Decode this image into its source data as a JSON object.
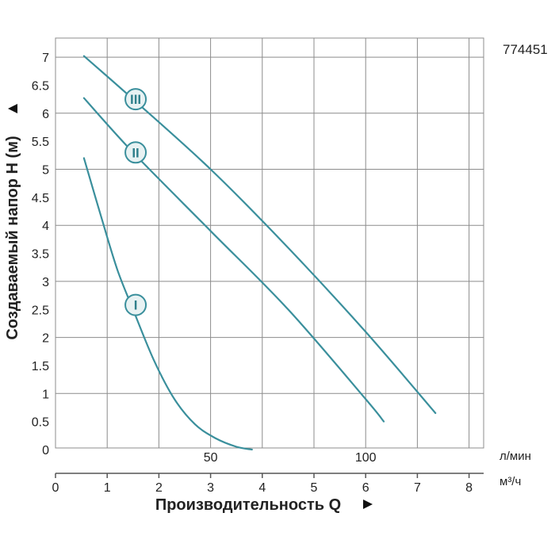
{
  "chart_data": {
    "type": "line",
    "code": "774451",
    "ylabel": "Создаваемый напор H (м)",
    "xlabel": "Производительность Q",
    "y_axis": {
      "min": 0,
      "max": 7.5,
      "ticks": [
        "0",
        "0.5",
        "1",
        "1.5",
        "2",
        "2.5",
        "3",
        "3.5",
        "4",
        "4.5",
        "5",
        "5.5",
        "6",
        "6.5",
        "7"
      ]
    },
    "x_axis_m3h": {
      "unit": "м³/ч",
      "min": 0,
      "max": 8.4,
      "ticks": [
        "0",
        "1",
        "2",
        "3",
        "4",
        "5",
        "6",
        "7",
        "8"
      ]
    },
    "x_axis_lmin": {
      "unit": "л/мин",
      "ticks": [
        "50",
        "100"
      ],
      "tick_values_m3h": [
        3,
        6
      ]
    },
    "grid": true,
    "series": [
      {
        "name": "I",
        "x": [
          0.55,
          0.9,
          1.2,
          1.5,
          1.9,
          2.3,
          2.7,
          3.1,
          3.5,
          3.8
        ],
        "y": [
          5.2,
          4.1,
          3.2,
          2.5,
          1.6,
          0.9,
          0.45,
          0.2,
          0.05,
          0.0
        ]
      },
      {
        "name": "II",
        "x": [
          0.55,
          1.5,
          3.0,
          4.5,
          6.0,
          6.35
        ],
        "y": [
          6.27,
          5.3,
          3.9,
          2.5,
          0.9,
          0.5
        ]
      },
      {
        "name": "III",
        "x": [
          0.55,
          1.5,
          3.0,
          4.5,
          6.0,
          7.35
        ],
        "y": [
          7.02,
          6.25,
          5.0,
          3.6,
          2.1,
          0.65
        ]
      }
    ],
    "curve_labels": [
      {
        "text": "I",
        "x": 1.55,
        "y": 2.58
      },
      {
        "text": "II",
        "x": 1.55,
        "y": 5.3
      },
      {
        "text": "III",
        "x": 1.55,
        "y": 6.25
      }
    ],
    "colors": {
      "curve": "#3a8f9c",
      "grid": "#8c8c8c",
      "axis": "#555555",
      "label_fill": "#e8f2f3"
    }
  }
}
